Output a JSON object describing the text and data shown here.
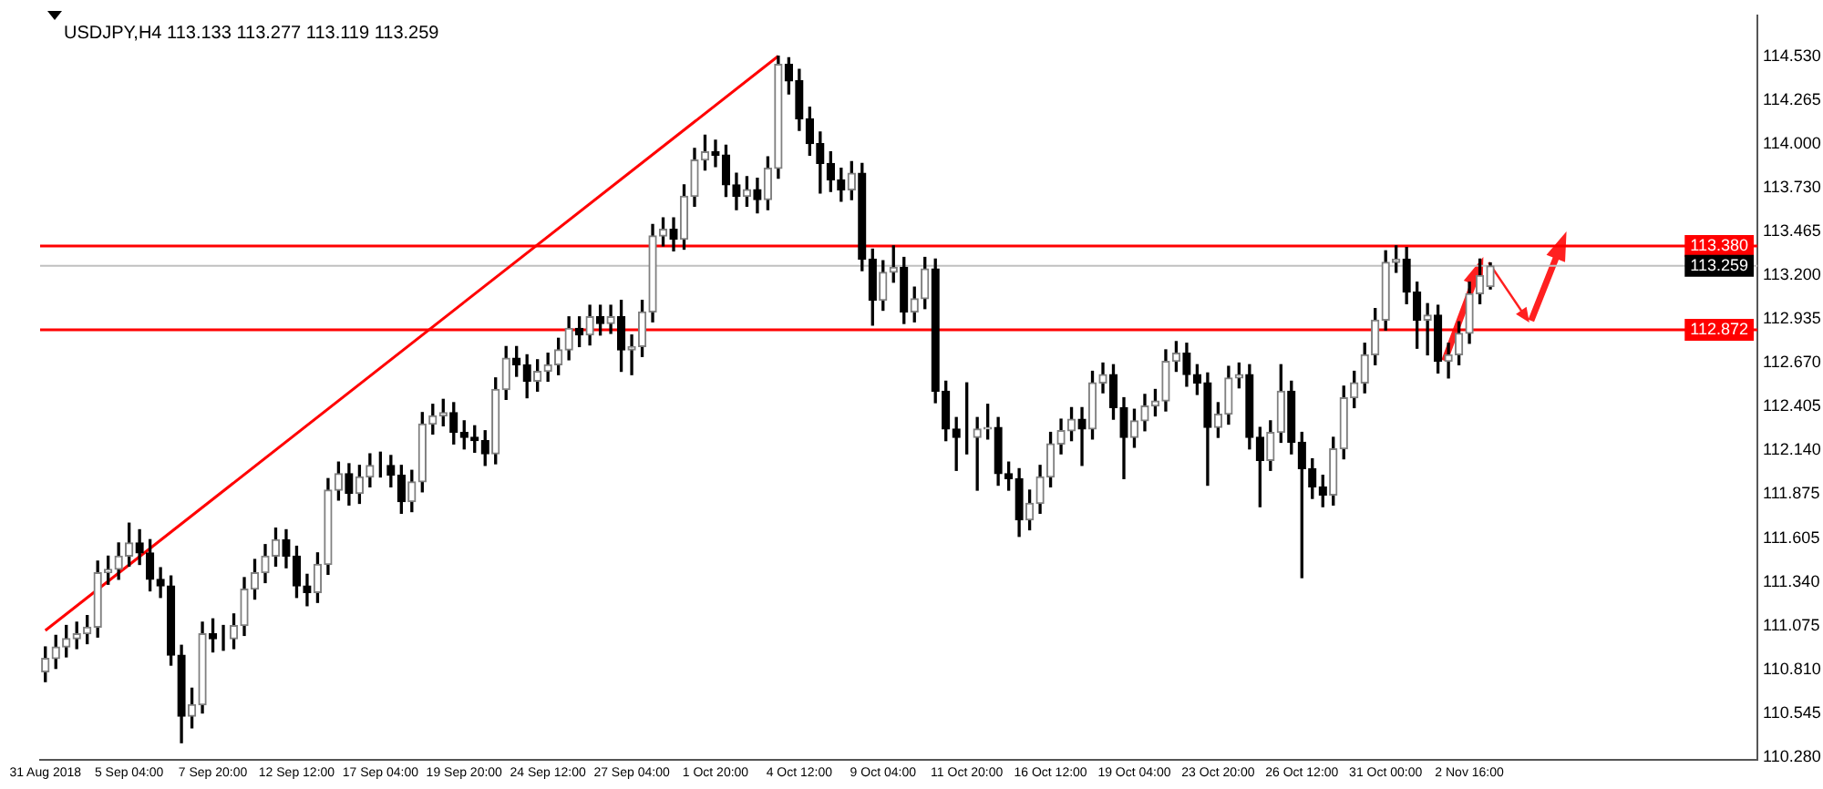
{
  "chart_data": {
    "type": "candlestick",
    "title": "USDJPY,H4 113.133 113.277 113.119 113.259",
    "categories": [
      "31 Aug 2018",
      null,
      null,
      null,
      null,
      null,
      null,
      null,
      "5 Sep 04:00",
      null,
      null,
      null,
      null,
      null,
      null,
      null,
      "7 Sep 20:00",
      null,
      null,
      null,
      null,
      null,
      null,
      null,
      "12 Sep 12:00",
      null,
      null,
      null,
      null,
      null,
      null,
      null,
      "17 Sep 04:00",
      null,
      null,
      null,
      null,
      null,
      null,
      null,
      "19 Sep 20:00",
      null,
      null,
      null,
      null,
      null,
      null,
      null,
      "24 Sep 12:00",
      null,
      null,
      null,
      null,
      null,
      null,
      null,
      "27 Sep 04:00",
      null,
      null,
      null,
      null,
      null,
      null,
      null,
      "1 Oct 20:00",
      null,
      null,
      null,
      null,
      null,
      null,
      null,
      "4 Oct 12:00",
      null,
      null,
      null,
      null,
      null,
      null,
      null,
      "9 Oct 04:00",
      null,
      null,
      null,
      null,
      null,
      null,
      null,
      "11 Oct 20:00",
      null,
      null,
      null,
      null,
      null,
      null,
      null,
      "16 Oct 12:00",
      null,
      null,
      null,
      null,
      null,
      null,
      null,
      "19 Oct 04:00",
      null,
      null,
      null,
      null,
      null,
      null,
      null,
      "23 Oct 20:00",
      null,
      null,
      null,
      null,
      null,
      null,
      null,
      "26 Oct 12:00",
      null,
      null,
      null,
      null,
      null,
      null,
      null,
      "31 Oct 00:00",
      null,
      null,
      null,
      null,
      null,
      null,
      null,
      "2 Nov 16:00",
      null,
      null,
      null,
      null,
      null,
      null,
      null,
      null,
      null,
      null,
      null,
      null,
      null,
      null,
      null,
      null,
      null,
      null,
      null,
      null,
      null,
      null,
      null,
      null,
      null,
      null,
      null
    ],
    "ohlc": [
      [
        110.8,
        110.95,
        110.74,
        110.88
      ],
      [
        110.88,
        111.02,
        110.82,
        110.95
      ],
      [
        110.95,
        111.08,
        110.89,
        111.0
      ],
      [
        111.0,
        111.1,
        110.94,
        111.03
      ],
      [
        111.03,
        111.14,
        110.97,
        111.07
      ],
      [
        111.07,
        111.47,
        111.01,
        111.4
      ],
      [
        111.4,
        111.5,
        111.33,
        111.42
      ],
      [
        111.42,
        111.58,
        111.36,
        111.5
      ],
      [
        111.5,
        111.7,
        111.44,
        111.58
      ],
      [
        111.58,
        111.66,
        111.45,
        111.52
      ],
      [
        111.52,
        111.6,
        111.29,
        111.36
      ],
      [
        111.36,
        111.43,
        111.25,
        111.32
      ],
      [
        111.32,
        111.38,
        110.84,
        110.9
      ],
      [
        110.9,
        110.96,
        110.37,
        110.53
      ],
      [
        110.53,
        110.7,
        110.46,
        110.6
      ],
      [
        110.6,
        111.1,
        110.55,
        111.03
      ],
      [
        111.03,
        111.12,
        110.92,
        111.0
      ],
      [
        111.0,
        111.08,
        110.93,
        111.0
      ],
      [
        111.0,
        111.15,
        110.94,
        111.08
      ],
      [
        111.08,
        111.37,
        111.02,
        111.3
      ],
      [
        111.3,
        111.48,
        111.24,
        111.4
      ],
      [
        111.4,
        111.57,
        111.34,
        111.5
      ],
      [
        111.5,
        111.67,
        111.44,
        111.6
      ],
      [
        111.6,
        111.66,
        111.43,
        111.5
      ],
      [
        111.5,
        111.56,
        111.25,
        111.32
      ],
      [
        111.32,
        111.39,
        111.2,
        111.28
      ],
      [
        111.28,
        111.52,
        111.22,
        111.45
      ],
      [
        111.45,
        111.97,
        111.39,
        111.9
      ],
      [
        111.9,
        112.07,
        111.84,
        112.0
      ],
      [
        112.0,
        112.06,
        111.81,
        111.88
      ],
      [
        111.88,
        112.05,
        111.82,
        111.98
      ],
      [
        111.98,
        112.12,
        111.92,
        112.05
      ],
      [
        112.05,
        112.13,
        111.98,
        112.05
      ],
      [
        112.05,
        112.11,
        111.92,
        111.99
      ],
      [
        111.99,
        112.05,
        111.76,
        111.83
      ],
      [
        111.83,
        112.02,
        111.77,
        111.95
      ],
      [
        111.95,
        112.37,
        111.89,
        112.3
      ],
      [
        112.3,
        112.42,
        112.24,
        112.35
      ],
      [
        112.35,
        112.45,
        112.29,
        112.37
      ],
      [
        112.37,
        112.43,
        112.18,
        112.25
      ],
      [
        112.25,
        112.32,
        112.15,
        112.22
      ],
      [
        112.22,
        112.29,
        112.13,
        112.2
      ],
      [
        112.2,
        112.26,
        112.05,
        112.12
      ],
      [
        112.12,
        112.58,
        112.06,
        112.51
      ],
      [
        112.51,
        112.77,
        112.45,
        112.7
      ],
      [
        112.7,
        112.77,
        112.59,
        112.66
      ],
      [
        112.66,
        112.72,
        112.46,
        112.56
      ],
      [
        112.56,
        112.69,
        112.5,
        112.62
      ],
      [
        112.62,
        112.73,
        112.56,
        112.66
      ],
      [
        112.66,
        112.82,
        112.6,
        112.75
      ],
      [
        112.75,
        112.95,
        112.69,
        112.88
      ],
      [
        112.88,
        112.95,
        112.77,
        112.84
      ],
      [
        112.84,
        113.02,
        112.78,
        112.95
      ],
      [
        112.95,
        113.02,
        112.84,
        112.91
      ],
      [
        112.91,
        113.02,
        112.85,
        112.95
      ],
      [
        112.95,
        113.05,
        112.62,
        112.75
      ],
      [
        112.75,
        112.84,
        112.6,
        112.77
      ],
      [
        112.77,
        113.05,
        112.71,
        112.98
      ],
      [
        112.98,
        113.51,
        112.92,
        113.44
      ],
      [
        113.44,
        113.55,
        113.38,
        113.48
      ],
      [
        113.48,
        113.55,
        113.35,
        113.42
      ],
      [
        113.42,
        113.75,
        113.36,
        113.68
      ],
      [
        113.68,
        113.97,
        113.62,
        113.9
      ],
      [
        113.9,
        114.05,
        113.84,
        113.95
      ],
      [
        113.95,
        114.02,
        113.86,
        113.93
      ],
      [
        113.93,
        113.99,
        113.68,
        113.75
      ],
      [
        113.75,
        113.82,
        113.6,
        113.68
      ],
      [
        113.68,
        113.8,
        113.62,
        113.72
      ],
      [
        113.72,
        113.79,
        113.58,
        113.66
      ],
      [
        113.66,
        113.92,
        113.6,
        113.85
      ],
      [
        113.85,
        114.53,
        113.79,
        114.48
      ],
      [
        114.48,
        114.52,
        114.3,
        114.38
      ],
      [
        114.38,
        114.45,
        114.08,
        114.15
      ],
      [
        114.15,
        114.22,
        113.93,
        114.0
      ],
      [
        114.0,
        114.07,
        113.7,
        113.88
      ],
      [
        113.88,
        113.95,
        113.71,
        113.78
      ],
      [
        113.78,
        113.85,
        113.65,
        113.72
      ],
      [
        113.72,
        113.89,
        113.66,
        113.82
      ],
      [
        113.82,
        113.88,
        113.23,
        113.3
      ],
      [
        113.3,
        113.36,
        112.9,
        113.05
      ],
      [
        113.05,
        113.29,
        112.99,
        113.22
      ],
      [
        113.22,
        113.38,
        113.16,
        113.25
      ],
      [
        113.25,
        113.31,
        112.91,
        112.98
      ],
      [
        112.98,
        113.13,
        112.92,
        113.06
      ],
      [
        113.06,
        113.31,
        113.0,
        113.24
      ],
      [
        113.24,
        113.3,
        112.43,
        112.5
      ],
      [
        112.5,
        112.56,
        112.2,
        112.27
      ],
      [
        112.27,
        112.34,
        112.02,
        112.22
      ],
      [
        112.22,
        112.55,
        112.12,
        112.22
      ],
      [
        112.22,
        112.34,
        111.9,
        112.27
      ],
      [
        112.27,
        112.42,
        112.21,
        112.28
      ],
      [
        112.28,
        112.34,
        111.93,
        112.0
      ],
      [
        112.0,
        112.07,
        111.9,
        111.97
      ],
      [
        111.97,
        112.03,
        111.62,
        111.72
      ],
      [
        111.72,
        111.9,
        111.66,
        111.82
      ],
      [
        111.82,
        112.05,
        111.76,
        111.98
      ],
      [
        111.98,
        112.25,
        111.92,
        112.18
      ],
      [
        112.18,
        112.33,
        112.12,
        112.26
      ],
      [
        112.26,
        112.4,
        112.2,
        112.33
      ],
      [
        112.33,
        112.4,
        112.05,
        112.27
      ],
      [
        112.27,
        112.62,
        112.21,
        112.55
      ],
      [
        112.55,
        112.67,
        112.49,
        112.6
      ],
      [
        112.6,
        112.66,
        112.33,
        112.4
      ],
      [
        112.4,
        112.46,
        111.97,
        112.22
      ],
      [
        112.22,
        112.39,
        112.16,
        112.32
      ],
      [
        112.32,
        112.48,
        112.26,
        112.41
      ],
      [
        112.41,
        112.51,
        112.35,
        112.44
      ],
      [
        112.44,
        112.75,
        112.38,
        112.68
      ],
      [
        112.68,
        112.8,
        112.62,
        112.73
      ],
      [
        112.73,
        112.79,
        112.53,
        112.6
      ],
      [
        112.6,
        112.66,
        112.48,
        112.55
      ],
      [
        112.55,
        112.61,
        111.93,
        112.28
      ],
      [
        112.28,
        112.43,
        112.22,
        112.36
      ],
      [
        112.36,
        112.65,
        112.3,
        112.58
      ],
      [
        112.58,
        112.67,
        112.52,
        112.6
      ],
      [
        112.6,
        112.66,
        112.15,
        112.22
      ],
      [
        112.22,
        112.28,
        111.8,
        112.08
      ],
      [
        112.08,
        112.32,
        112.02,
        112.25
      ],
      [
        112.25,
        112.66,
        112.19,
        112.5
      ],
      [
        112.5,
        112.56,
        112.12,
        112.19
      ],
      [
        112.19,
        112.25,
        111.37,
        112.03
      ],
      [
        112.03,
        112.09,
        111.85,
        111.92
      ],
      [
        111.92,
        111.99,
        111.8,
        111.87
      ],
      [
        111.87,
        112.22,
        111.81,
        112.15
      ],
      [
        112.15,
        112.53,
        112.09,
        112.46
      ],
      [
        112.46,
        112.62,
        112.4,
        112.55
      ],
      [
        112.55,
        112.79,
        112.49,
        112.72
      ],
      [
        112.72,
        113.0,
        112.66,
        112.93
      ],
      [
        112.93,
        113.35,
        112.87,
        113.28
      ],
      [
        113.28,
        113.38,
        113.22,
        113.3
      ],
      [
        113.3,
        113.37,
        113.03,
        113.1
      ],
      [
        113.1,
        113.16,
        112.76,
        112.93
      ],
      [
        112.93,
        113.03,
        112.72,
        112.96
      ],
      [
        112.96,
        113.02,
        112.61,
        112.68
      ],
      [
        112.68,
        112.79,
        112.58,
        112.72
      ],
      [
        112.72,
        112.92,
        112.66,
        112.85
      ],
      [
        112.85,
        113.16,
        112.79,
        113.09
      ],
      [
        113.09,
        113.3,
        113.03,
        113.2
      ],
      [
        113.133,
        113.277,
        113.119,
        113.259
      ],
      null,
      null,
      null,
      null,
      null,
      null,
      null,
      null,
      null,
      null,
      null,
      null,
      null,
      null,
      null,
      null,
      null,
      null,
      null,
      null,
      null,
      null,
      null,
      null,
      null
    ],
    "series": [
      {
        "type": "line",
        "color": "#ff0000",
        "values": [
          111.05,
          null,
          null,
          null,
          null,
          null,
          null,
          null,
          null,
          null,
          null,
          null,
          null,
          null,
          null,
          null,
          null,
          null,
          null,
          null,
          null,
          null,
          null,
          null,
          null,
          null,
          null,
          null,
          null,
          null,
          null,
          null,
          null,
          null,
          null,
          null,
          null,
          null,
          null,
          null,
          null,
          null,
          null,
          null,
          null,
          null,
          null,
          null,
          null,
          null,
          null,
          null,
          null,
          null,
          null,
          null,
          null,
          null,
          null,
          null,
          null,
          null,
          null,
          null,
          null,
          null,
          null,
          null,
          null,
          null,
          114.53,
          null,
          null,
          null,
          null,
          null,
          null,
          null,
          null,
          null,
          null,
          null,
          null,
          null,
          null,
          null,
          null,
          null,
          null,
          null,
          null,
          null,
          null,
          null,
          null,
          null,
          null,
          null,
          null,
          null,
          null,
          null,
          null,
          null,
          null,
          null,
          null,
          null,
          null,
          null,
          null,
          null,
          null,
          null,
          null,
          null,
          null,
          null,
          null,
          null,
          null,
          null,
          null,
          null,
          null,
          null,
          null,
          null,
          null,
          null,
          null,
          null,
          null,
          null,
          null,
          null,
          null,
          null,
          null,
          null,
          null,
          null,
          null,
          null,
          null,
          null,
          null,
          null,
          null,
          null,
          null,
          null,
          null,
          null,
          null,
          null,
          null,
          null,
          null,
          null,
          null,
          null,
          null,
          null
        ]
      }
    ],
    "ylim": [
      110.266,
      114.777
    ],
    "yticks": [
      {
        "value": 110.28,
        "label": "110.280"
      },
      {
        "value": 110.545,
        "label": "110.545"
      },
      {
        "value": 110.81,
        "label": "110.810"
      },
      {
        "value": 111.075,
        "label": "111.075"
      },
      {
        "value": 111.34,
        "label": "111.340"
      },
      {
        "value": 111.605,
        "label": "111.605"
      },
      {
        "value": 111.875,
        "label": "111.875"
      },
      {
        "value": 112.14,
        "label": "112.140"
      },
      {
        "value": 112.405,
        "label": "112.405"
      },
      {
        "value": 112.67,
        "label": "112.670"
      },
      {
        "value": 112.935,
        "label": "112.935"
      },
      {
        "value": 113.2,
        "label": "113.200"
      },
      {
        "value": 113.465,
        "label": "113.465"
      },
      {
        "value": 113.73,
        "label": "113.730"
      },
      {
        "value": 114.0,
        "label": "114.000"
      },
      {
        "value": 114.265,
        "label": "114.265"
      },
      {
        "value": 114.53,
        "label": "114.530"
      }
    ],
    "ref_lines": [
      {
        "axis": "y",
        "value": 113.38,
        "label": "113.380",
        "color": "#ff0000"
      },
      {
        "axis": "y",
        "value": 112.872,
        "label": "112.872",
        "color": "#ff0000"
      },
      {
        "axis": "y",
        "value": 113.259,
        "label": "113.259",
        "color": "#c0c0c0"
      }
    ]
  }
}
